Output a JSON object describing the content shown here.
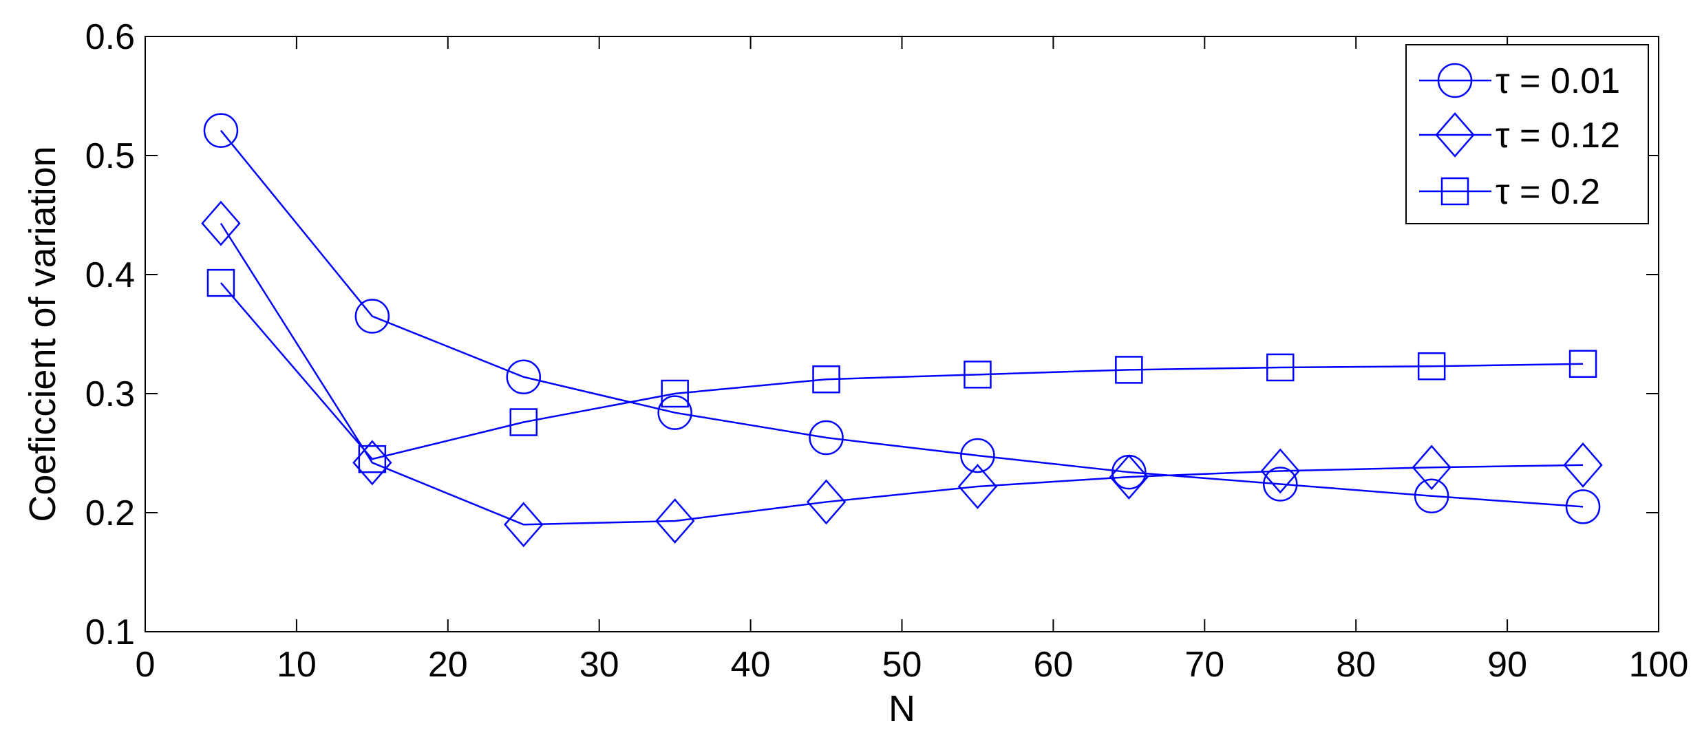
{
  "chart_data": {
    "type": "line",
    "title": "",
    "xlabel": "N",
    "ylabel": "Coeficcient of variation",
    "xlim": [
      0,
      100
    ],
    "ylim": [
      0.1,
      0.6
    ],
    "x_ticks": [
      0,
      10,
      20,
      30,
      40,
      50,
      60,
      70,
      80,
      90,
      100
    ],
    "y_ticks": [
      0.1,
      0.2,
      0.3,
      0.4,
      0.5,
      0.6
    ],
    "x_tick_labels": [
      "0",
      "10",
      "20",
      "30",
      "40",
      "50",
      "60",
      "70",
      "80",
      "90",
      "100"
    ],
    "y_tick_labels": [
      "0.1",
      "0.2",
      "0.3",
      "0.4",
      "0.5",
      "0.6"
    ],
    "grid": false,
    "legend_position": "top-right",
    "line_color": "#0000ff",
    "x": [
      5,
      15,
      25,
      35,
      45,
      55,
      65,
      75,
      85,
      95
    ],
    "series": [
      {
        "name": "τ = 0.01",
        "marker": "circle",
        "values": [
          0.521,
          0.365,
          0.314,
          0.284,
          0.263,
          0.248,
          0.234,
          0.224,
          0.214,
          0.205
        ]
      },
      {
        "name": "τ = 0.12",
        "marker": "diamond",
        "values": [
          0.443,
          0.242,
          0.19,
          0.193,
          0.209,
          0.222,
          0.23,
          0.235,
          0.238,
          0.24
        ]
      },
      {
        "name": "τ = 0.2",
        "marker": "square",
        "values": [
          0.393,
          0.245,
          0.276,
          0.3,
          0.312,
          0.316,
          0.32,
          0.322,
          0.323,
          0.325
        ]
      }
    ]
  }
}
